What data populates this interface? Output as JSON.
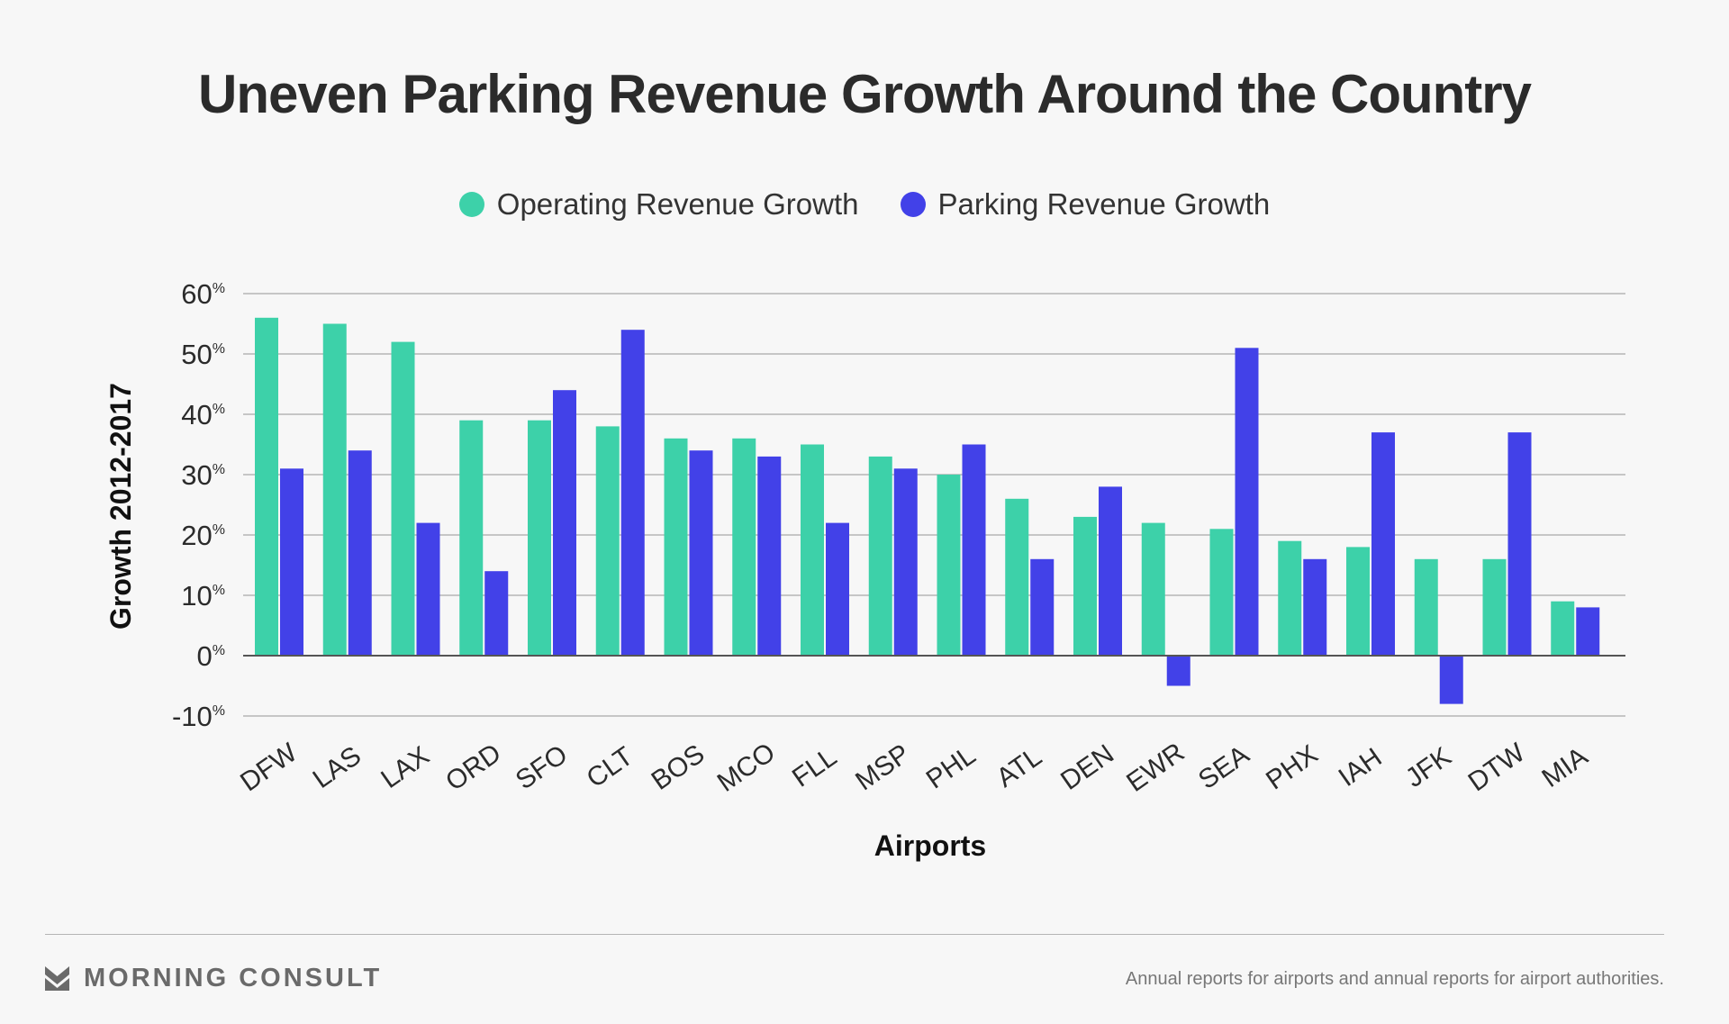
{
  "title": "Uneven Parking Revenue Growth Around the Country",
  "legend": {
    "operating_label": "Operating Revenue Growth",
    "parking_label": "Parking Revenue Growth"
  },
  "colors": {
    "operating": "#3dd1a9",
    "parking": "#4241e8",
    "grid": "#a9a9a9",
    "zero_line": "#555555",
    "text": "#2b2b2b"
  },
  "footer": {
    "brand": "MORNING CONSULT",
    "logo_icon": "morning-consult-logo-icon",
    "source": "Annual reports for airports and annual reports for airport authorities."
  },
  "chart_data": {
    "type": "bar",
    "xlabel": "Airports",
    "ylabel": "Growth 2012-2017",
    "ylim": [
      -10,
      60
    ],
    "yticks": [
      {
        "num": "60",
        "unit": "%",
        "value": 60
      },
      {
        "num": "50",
        "unit": "%",
        "value": 50
      },
      {
        "num": "40",
        "unit": "%",
        "value": 40
      },
      {
        "num": "30",
        "unit": "%",
        "value": 30
      },
      {
        "num": "20",
        "unit": "%",
        "value": 20
      },
      {
        "num": "10",
        "unit": "%",
        "value": 10
      },
      {
        "num": "0",
        "unit": "%",
        "value": 0
      },
      {
        "num": "-10",
        "unit": "%",
        "value": -10
      }
    ],
    "grid": true,
    "legend_position": "top-center",
    "categories": [
      "DFW",
      "LAS",
      "LAX",
      "ORD",
      "SFO",
      "CLT",
      "BOS",
      "MCO",
      "FLL",
      "MSP",
      "PHL",
      "ATL",
      "DEN",
      "EWR",
      "SEA",
      "PHX",
      "IAH",
      "JFK",
      "DTW",
      "MIA"
    ],
    "series": [
      {
        "name": "Operating Revenue Growth",
        "values": [
          56,
          55,
          52,
          39,
          39,
          38,
          36,
          36,
          35,
          33,
          30,
          26,
          23,
          22,
          21,
          19,
          18,
          16,
          16,
          9
        ]
      },
      {
        "name": "Parking Revenue Growth",
        "values": [
          31,
          34,
          22,
          14,
          44,
          54,
          34,
          33,
          22,
          31,
          35,
          16,
          28,
          -5,
          51,
          16,
          37,
          -8,
          37,
          8
        ]
      }
    ]
  }
}
